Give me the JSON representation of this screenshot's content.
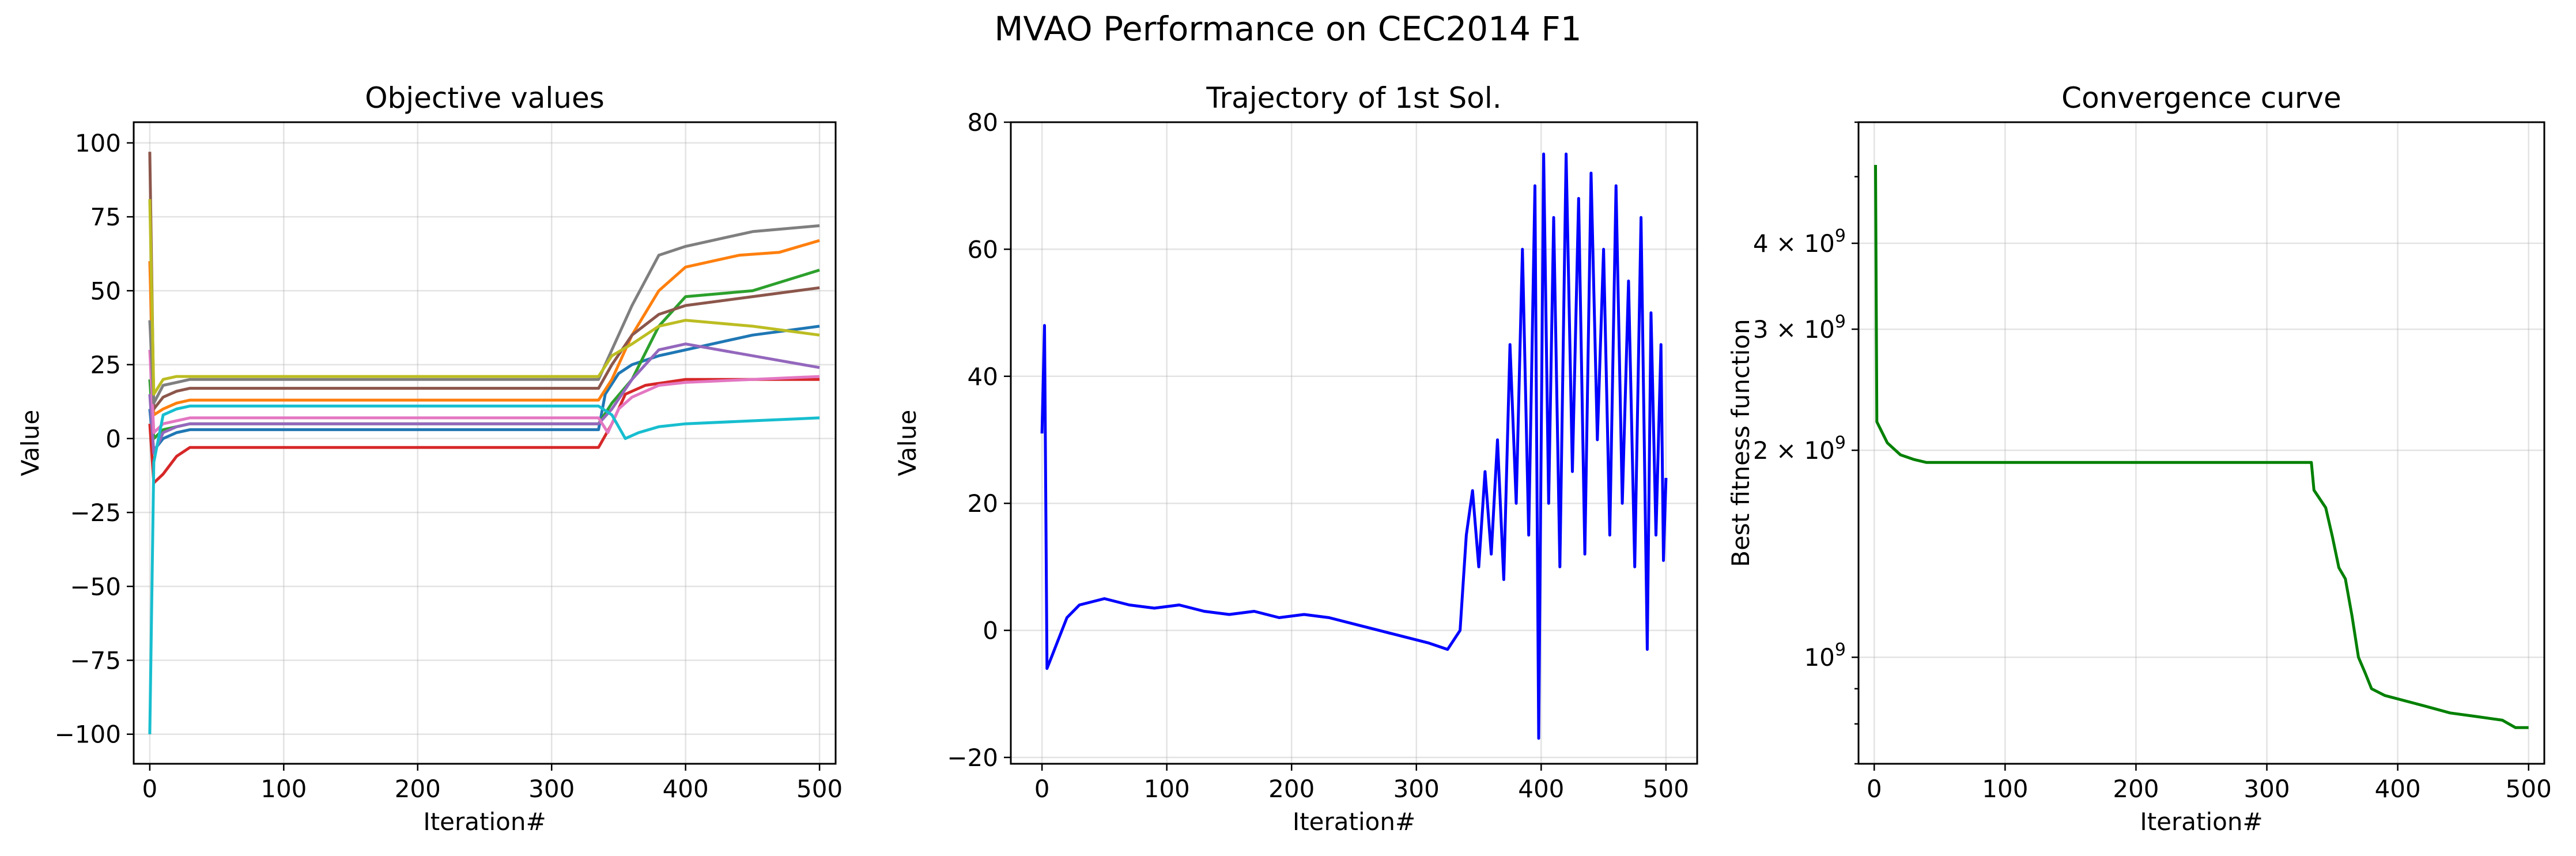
{
  "figure": {
    "suptitle": "MVAO Performance on CEC2014 F1"
  },
  "chart_data": [
    {
      "type": "line",
      "title": "Objective values",
      "xlabel": "Iteration#",
      "ylabel": "Value",
      "xlim": [
        -12,
        512
      ],
      "ylim": [
        -110,
        107
      ],
      "xticks": [
        0,
        100,
        200,
        300,
        400,
        500
      ],
      "yticks": [
        -100,
        -75,
        -50,
        -25,
        0,
        25,
        50,
        75,
        100
      ],
      "grid": true,
      "series": [
        {
          "color": "#1f77b4",
          "points": [
            [
              0,
              10
            ],
            [
              3,
              -4
            ],
            [
              10,
              0
            ],
            [
              20,
              2
            ],
            [
              30,
              3
            ],
            [
              335,
              3
            ],
            [
              340,
              15
            ],
            [
              350,
              22
            ],
            [
              360,
              25
            ],
            [
              380,
              28
            ],
            [
              400,
              30
            ],
            [
              450,
              35
            ],
            [
              500,
              38
            ]
          ]
        },
        {
          "color": "#ff7f0e",
          "points": [
            [
              0,
              60
            ],
            [
              3,
              8
            ],
            [
              10,
              10
            ],
            [
              20,
              12
            ],
            [
              30,
              13
            ],
            [
              335,
              13
            ],
            [
              345,
              20
            ],
            [
              360,
              35
            ],
            [
              380,
              50
            ],
            [
              400,
              58
            ],
            [
              440,
              62
            ],
            [
              470,
              63
            ],
            [
              500,
              67
            ]
          ]
        },
        {
          "color": "#2ca02c",
          "points": [
            [
              0,
              20
            ],
            [
              3,
              0
            ],
            [
              10,
              3
            ],
            [
              20,
              4
            ],
            [
              30,
              5
            ],
            [
              335,
              5
            ],
            [
              345,
              12
            ],
            [
              360,
              20
            ],
            [
              380,
              38
            ],
            [
              400,
              48
            ],
            [
              450,
              50
            ],
            [
              500,
              57
            ]
          ]
        },
        {
          "color": "#d62728",
          "points": [
            [
              0,
              5
            ],
            [
              3,
              -15
            ],
            [
              10,
              -12
            ],
            [
              20,
              -6
            ],
            [
              30,
              -3
            ],
            [
              335,
              -3
            ],
            [
              345,
              5
            ],
            [
              355,
              15
            ],
            [
              370,
              18
            ],
            [
              400,
              20
            ],
            [
              450,
              20
            ],
            [
              500,
              20
            ]
          ]
        },
        {
          "color": "#9467bd",
          "points": [
            [
              0,
              15
            ],
            [
              3,
              -5
            ],
            [
              10,
              2
            ],
            [
              20,
              4
            ],
            [
              30,
              5
            ],
            [
              335,
              5
            ],
            [
              345,
              10
            ],
            [
              360,
              20
            ],
            [
              380,
              30
            ],
            [
              400,
              32
            ],
            [
              450,
              28
            ],
            [
              500,
              24
            ]
          ]
        },
        {
          "color": "#8c564b",
          "points": [
            [
              0,
              97
            ],
            [
              3,
              10
            ],
            [
              10,
              14
            ],
            [
              20,
              16
            ],
            [
              30,
              17
            ],
            [
              335,
              17
            ],
            [
              345,
              25
            ],
            [
              360,
              35
            ],
            [
              380,
              42
            ],
            [
              400,
              45
            ],
            [
              450,
              48
            ],
            [
              500,
              51
            ]
          ]
        },
        {
          "color": "#e377c2",
          "points": [
            [
              0,
              30
            ],
            [
              3,
              2
            ],
            [
              10,
              5
            ],
            [
              20,
              6
            ],
            [
              30,
              7
            ],
            [
              335,
              7
            ],
            [
              342,
              2
            ],
            [
              350,
              10
            ],
            [
              360,
              14
            ],
            [
              380,
              18
            ],
            [
              400,
              19
            ],
            [
              450,
              20
            ],
            [
              500,
              21
            ]
          ]
        },
        {
          "color": "#7f7f7f",
          "points": [
            [
              0,
              40
            ],
            [
              3,
              12
            ],
            [
              10,
              18
            ],
            [
              20,
              19
            ],
            [
              30,
              20
            ],
            [
              335,
              20
            ],
            [
              345,
              30
            ],
            [
              360,
              45
            ],
            [
              380,
              62
            ],
            [
              400,
              65
            ],
            [
              450,
              70
            ],
            [
              500,
              72
            ]
          ]
        },
        {
          "color": "#bcbd22",
          "points": [
            [
              0,
              81
            ],
            [
              3,
              15
            ],
            [
              10,
              20
            ],
            [
              20,
              21
            ],
            [
              30,
              21
            ],
            [
              335,
              21
            ],
            [
              345,
              28
            ],
            [
              360,
              32
            ],
            [
              380,
              38
            ],
            [
              400,
              40
            ],
            [
              450,
              38
            ],
            [
              500,
              35
            ]
          ]
        },
        {
          "color": "#17becf",
          "points": [
            [
              0,
              -100
            ],
            [
              3,
              -8
            ],
            [
              10,
              8
            ],
            [
              20,
              10
            ],
            [
              30,
              11
            ],
            [
              335,
              11
            ],
            [
              345,
              8
            ],
            [
              355,
              0
            ],
            [
              365,
              2
            ],
            [
              380,
              4
            ],
            [
              400,
              5
            ],
            [
              450,
              6
            ],
            [
              500,
              7
            ]
          ]
        }
      ]
    },
    {
      "type": "line",
      "title": "Trajectory of 1st Sol.",
      "xlabel": "Iteration#",
      "ylabel": "Value",
      "xlim": [
        -25,
        525
      ],
      "ylim": [
        -21,
        80
      ],
      "xticks": [
        0,
        100,
        200,
        300,
        400,
        500
      ],
      "yticks": [
        -20,
        0,
        20,
        40,
        60,
        80
      ],
      "grid": true,
      "series": [
        {
          "color": "#0000ff",
          "points": [
            [
              0,
              31
            ],
            [
              2,
              48
            ],
            [
              4,
              -6
            ],
            [
              8,
              -4
            ],
            [
              12,
              -2
            ],
            [
              20,
              2
            ],
            [
              30,
              4
            ],
            [
              40,
              4.5
            ],
            [
              50,
              5
            ],
            [
              70,
              4
            ],
            [
              90,
              3.5
            ],
            [
              110,
              4
            ],
            [
              130,
              3
            ],
            [
              150,
              2.5
            ],
            [
              170,
              3
            ],
            [
              190,
              2
            ],
            [
              210,
              2.5
            ],
            [
              230,
              2
            ],
            [
              250,
              1
            ],
            [
              270,
              0
            ],
            [
              290,
              -1
            ],
            [
              310,
              -2
            ],
            [
              325,
              -3
            ],
            [
              335,
              0
            ],
            [
              340,
              15
            ],
            [
              345,
              22
            ],
            [
              350,
              10
            ],
            [
              355,
              25
            ],
            [
              360,
              12
            ],
            [
              365,
              30
            ],
            [
              370,
              8
            ],
            [
              375,
              45
            ],
            [
              380,
              20
            ],
            [
              385,
              60
            ],
            [
              390,
              15
            ],
            [
              395,
              70
            ],
            [
              398,
              -17
            ],
            [
              402,
              75
            ],
            [
              406,
              20
            ],
            [
              410,
              65
            ],
            [
              415,
              10
            ],
            [
              420,
              75
            ],
            [
              425,
              25
            ],
            [
              430,
              68
            ],
            [
              435,
              12
            ],
            [
              440,
              72
            ],
            [
              445,
              30
            ],
            [
              450,
              60
            ],
            [
              455,
              15
            ],
            [
              460,
              70
            ],
            [
              465,
              20
            ],
            [
              470,
              55
            ],
            [
              475,
              10
            ],
            [
              480,
              65
            ],
            [
              485,
              -3
            ],
            [
              488,
              50
            ],
            [
              492,
              15
            ],
            [
              496,
              45
            ],
            [
              498,
              11
            ],
            [
              500,
              24
            ]
          ]
        }
      ]
    },
    {
      "type": "line",
      "title": "Convergence curve",
      "xlabel": "Iteration#",
      "ylabel": "Best fitness function",
      "yscale": "log",
      "xlim": [
        -12,
        512
      ],
      "ylim": [
        700000000,
        6000000000
      ],
      "xticks": [
        0,
        100,
        200,
        300,
        400,
        500
      ],
      "yticks": [
        1000000000,
        2000000000,
        3000000000,
        4000000000
      ],
      "grid": true,
      "series": [
        {
          "color": "#008000",
          "points": [
            [
              1,
              5200000000
            ],
            [
              2,
              2200000000
            ],
            [
              10,
              2050000000
            ],
            [
              20,
              1970000000
            ],
            [
              30,
              1940000000
            ],
            [
              40,
              1920000000
            ],
            [
              100,
              1920000000
            ],
            [
              200,
              1920000000
            ],
            [
              334,
              1920000000
            ],
            [
              336,
              1750000000
            ],
            [
              345,
              1650000000
            ],
            [
              350,
              1500000000
            ],
            [
              355,
              1350000000
            ],
            [
              360,
              1300000000
            ],
            [
              365,
              1150000000
            ],
            [
              370,
              1000000000
            ],
            [
              375,
              950000000
            ],
            [
              380,
              900000000
            ],
            [
              390,
              880000000
            ],
            [
              400,
              870000000
            ],
            [
              420,
              850000000
            ],
            [
              440,
              830000000
            ],
            [
              460,
              820000000
            ],
            [
              480,
              810000000
            ],
            [
              490,
              790000000
            ],
            [
              500,
              790000000
            ]
          ]
        }
      ]
    }
  ]
}
